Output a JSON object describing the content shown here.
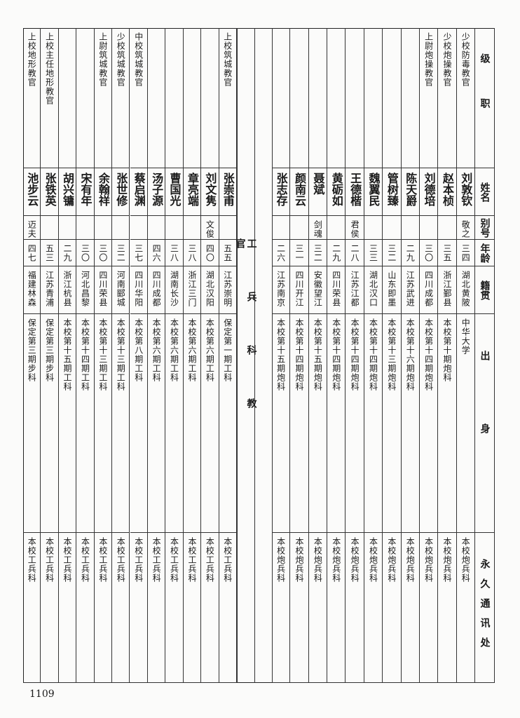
{
  "headers": {
    "position": "级职",
    "name": "姓名",
    "alias": "别号",
    "age": "年龄",
    "native": "籍贯",
    "origin": "出身",
    "address": "永久通讯处"
  },
  "section_title": "工兵科教官",
  "artillery": [
    {
      "position": "少校防毒教官",
      "name": "刘敦钦",
      "alias": "敬之",
      "age": "三四",
      "native": "湖北黄陂",
      "origin": "中华大学",
      "address": "本校炮兵科"
    },
    {
      "position": "少校炮操教官",
      "name": "赵本桢",
      "alias": "",
      "age": "三五",
      "native": "浙江鄞县",
      "origin": "本校第十期炮科",
      "address": "本校炮兵科"
    },
    {
      "position": "上尉炮操教官",
      "name": "刘德培",
      "alias": "",
      "age": "三〇",
      "native": "四川成都",
      "origin": "本校第十四期炮科",
      "address": "本校炮兵科"
    },
    {
      "position": "",
      "name": "陈天爵",
      "alias": "",
      "age": "二九",
      "native": "江苏武进",
      "origin": "本校第十六期炮科",
      "address": "本校炮兵科"
    },
    {
      "position": "",
      "name": "管树臻",
      "alias": "",
      "age": "三二",
      "native": "山东即墨",
      "origin": "本校第十三期炮科",
      "address": "本校炮兵科"
    },
    {
      "position": "",
      "name": "魏翼民",
      "alias": "",
      "age": "三三",
      "native": "湖北汉口",
      "origin": "本校第十四期炮科",
      "address": "本校炮兵科"
    },
    {
      "position": "",
      "name": "王德楷",
      "alias": "君侯",
      "age": "二八",
      "native": "江苏江都",
      "origin": "本校第十四期炮科",
      "address": "本校炮兵科"
    },
    {
      "position": "",
      "name": "黄砺如",
      "alias": "",
      "age": "二九",
      "native": "四川荣县",
      "origin": "本校第十四期炮科",
      "address": "本校炮兵科"
    },
    {
      "position": "",
      "name": "聂斌",
      "alias": "剑魂",
      "age": "三二",
      "native": "安徽望江",
      "origin": "本校第十五期炮科",
      "address": "本校炮兵科"
    },
    {
      "position": "",
      "name": "颜南云",
      "alias": "",
      "age": "三一",
      "native": "四川开江",
      "origin": "本校第十四期炮科",
      "address": "本校炮兵科"
    },
    {
      "position": "",
      "name": "张志存",
      "alias": "",
      "age": "二六",
      "native": "江苏南京",
      "origin": "本校第十五期炮科",
      "address": "本校炮兵科"
    }
  ],
  "engineering": [
    {
      "position": "上校筑城教官",
      "name": "张崇甫",
      "alias": "",
      "age": "五五",
      "native": "江苏崇明",
      "origin": "保定第一期工科",
      "address": "本校工兵科"
    },
    {
      "position": "",
      "name": "刘文隽",
      "alias": "文俊",
      "age": "四〇",
      "native": "湖北汉阳",
      "origin": "本校第六期工科",
      "address": "本校工兵科"
    },
    {
      "position": "",
      "name": "章亮端",
      "alias": "",
      "age": "三八",
      "native": "浙江三门",
      "origin": "本校第六期工科",
      "address": "本校工兵科"
    },
    {
      "position": "",
      "name": "曹国光",
      "alias": "",
      "age": "三八",
      "native": "湖南长沙",
      "origin": "本校第六期工科",
      "address": "本校工兵科"
    },
    {
      "position": "",
      "name": "汤子源",
      "alias": "",
      "age": "四六",
      "native": "四川成都",
      "origin": "本校第六期工科",
      "address": "本校工兵科"
    },
    {
      "position": "中校筑城教官",
      "name": "蔡启渊",
      "alias": "",
      "age": "三七",
      "native": "四川华阳",
      "origin": "本校第八期工科",
      "address": "本校工兵科"
    },
    {
      "position": "少校筑城教官",
      "name": "张世修",
      "alias": "",
      "age": "三二",
      "native": "河南郾城",
      "origin": "本校第十三期工科",
      "address": "本校工兵科"
    },
    {
      "position": "上尉筑城教官",
      "name": "余翰祥",
      "alias": "",
      "age": "三〇",
      "native": "四川荣县",
      "origin": "本校第十三期工科",
      "address": "本校工兵科"
    },
    {
      "position": "",
      "name": "宋有年",
      "alias": "",
      "age": "三〇",
      "native": "河北昌黎",
      "origin": "本校第十四期工科",
      "address": "本校工兵科"
    },
    {
      "position": "",
      "name": "胡兴镛",
      "alias": "",
      "age": "二九",
      "native": "浙江杭县",
      "origin": "本校第十五期工科",
      "address": "本校工兵科"
    },
    {
      "position": "上校主任地形教官",
      "name": "张铁英",
      "alias": "",
      "age": "五三",
      "native": "江苏青浦",
      "origin": "保定第三期步科",
      "address": "本校工兵科"
    },
    {
      "position": "上校地形教官",
      "name": "池步云",
      "alias": "迈夫",
      "age": "四七",
      "native": "福建林森",
      "origin": "保定第三期步科",
      "address": "本校工兵科"
    }
  ],
  "page_number": "1109"
}
